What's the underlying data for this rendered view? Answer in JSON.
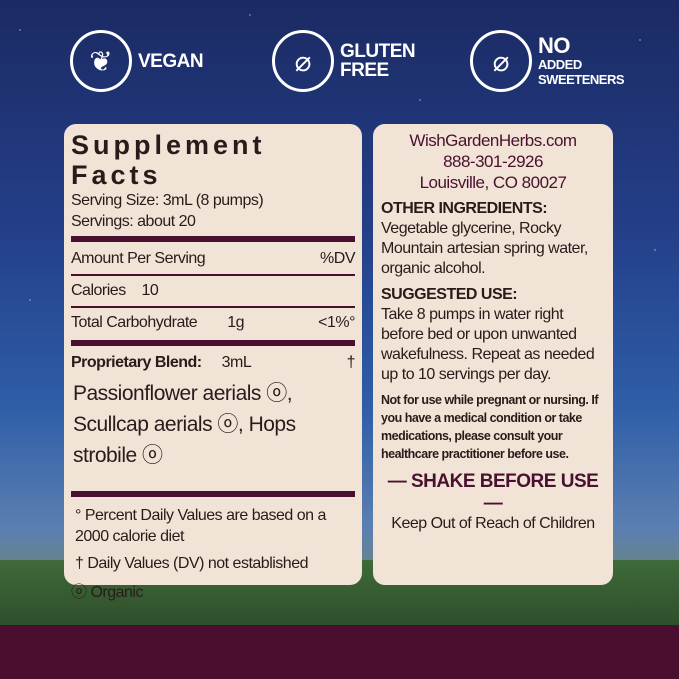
{
  "badges": [
    {
      "icon": "leaf-icon",
      "label": "VEGAN"
    },
    {
      "icon": "crossed-wheat-icon",
      "label1": "GLUTEN",
      "label2": "FREE"
    },
    {
      "icon": "crossed-sugar-cube-icon",
      "label1": "NO",
      "label2": "ADDED",
      "label3": "SWEETENERS"
    }
  ],
  "facts": {
    "title": "Supplement Facts",
    "serving_size": "Serving Size: 3mL (8 pumps)",
    "servings": "Servings: about 20",
    "amount_header": "Amount Per Serving",
    "dv_header": "%DV",
    "calories_label": "Calories",
    "calories_value": "10",
    "carb_label": "Total Carbohydrate",
    "carb_value": "1g",
    "carb_dv": "<1%°",
    "blend_label": "Proprietary Blend:",
    "blend_value": "3mL",
    "blend_dv": "†",
    "herbs": "Passionflower aerials ⓞ, Scullcap aerials ⓞ, Hops strobile ⓞ",
    "footnote1": "° Percent Daily Values are based on a 2000 calorie diet",
    "footnote2": "† Daily Values (DV) not established",
    "footnote3": "ⓞ Organic"
  },
  "info": {
    "website": "WishGardenHerbs.com",
    "phone": "888-301-2926",
    "address": "Louisville, CO 80027",
    "other_title": "OTHER INGREDIENTS:",
    "other_text": "Vegetable glycerine, Rocky Mountain artesian spring water, organic alcohol.",
    "use_title": "SUGGESTED USE:",
    "use_text": "Take 8 pumps in water right before bed or upon unwanted wakefulness. Repeat as needed up to 10 servings per day.",
    "warning": "Not for use while pregnant or nursing. If you have a medical condition or take medications, please consult your healthcare practitioner before use.",
    "shake": "— SHAKE BEFORE USE —",
    "keep": "Keep Out of Reach of Children"
  }
}
